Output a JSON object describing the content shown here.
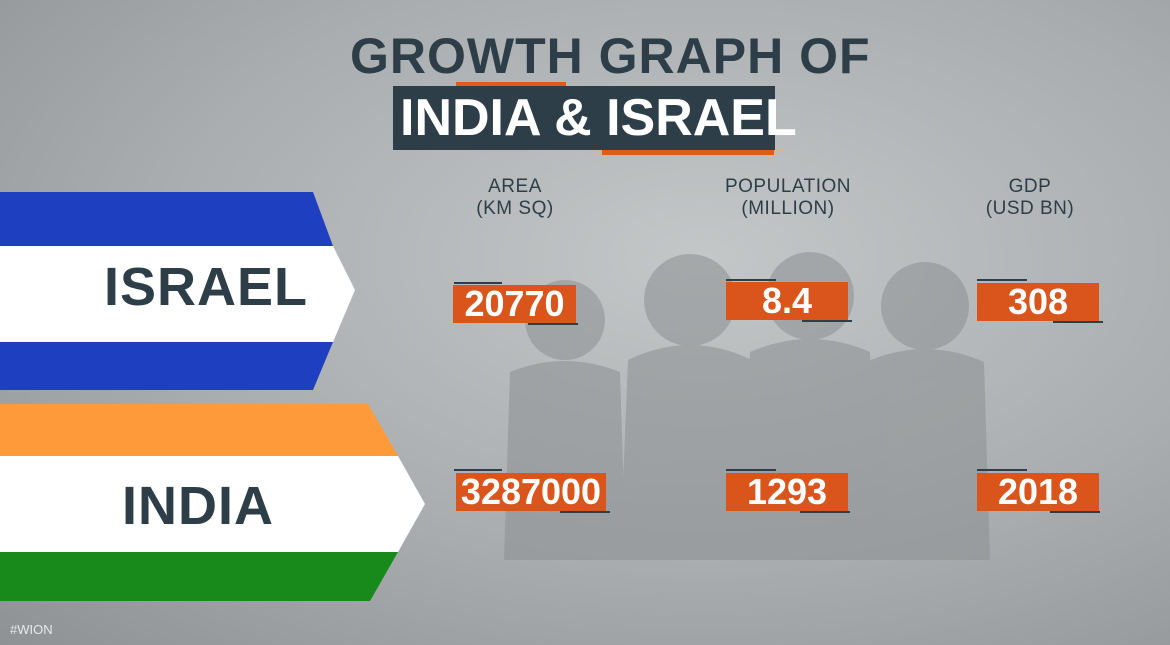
{
  "title": {
    "line1": "GROWTH GRAPH OF",
    "line2": "INDIA & ISRAEL"
  },
  "columns": [
    {
      "line1": "AREA",
      "line2": "(KM SQ)"
    },
    {
      "line1": "POPULATION",
      "line2": "(MILLION)"
    },
    {
      "line1": "GDP",
      "line2": "(USD BN)"
    }
  ],
  "rows": [
    {
      "country": "ISRAEL",
      "area": "20770",
      "population": "8.4",
      "gdp": "308"
    },
    {
      "country": "INDIA",
      "area": "3287000",
      "population": "1293",
      "gdp": "2018"
    }
  ],
  "colors": {
    "israel_blue": "#1e3fbf",
    "india_saffron": "#ff9a3a",
    "india_green": "#188a1c",
    "value_box": "#d9551c",
    "dark_text": "#2e3e48"
  },
  "watermark": "#WION"
}
